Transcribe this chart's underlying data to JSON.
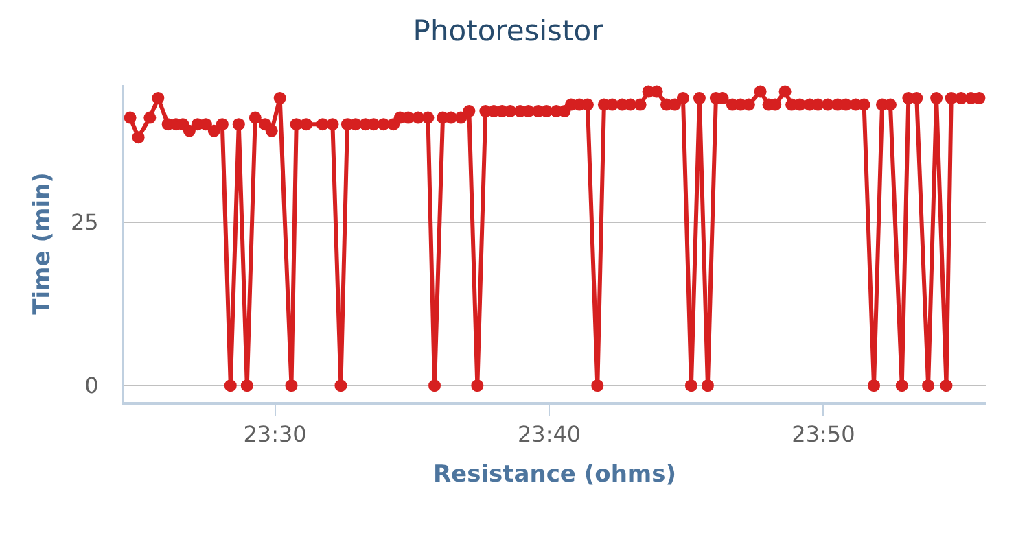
{
  "chart_data": {
    "type": "line",
    "title": "Photoresistor",
    "xlabel": "Resistance (ohms)",
    "ylabel": "Time (min)",
    "x": [
      23.412,
      23.417,
      23.424,
      23.429,
      23.435,
      23.44,
      23.444,
      23.448,
      23.453,
      23.458,
      23.463,
      23.468,
      23.473,
      23.478,
      23.483,
      23.488,
      23.494,
      23.498,
      23.503,
      23.51,
      23.513,
      23.519,
      23.529,
      23.535,
      23.54,
      23.544,
      23.549,
      23.555,
      23.56,
      23.566,
      23.572,
      23.576,
      23.581,
      23.587,
      23.593,
      23.597,
      23.602,
      23.607,
      23.613,
      23.618,
      23.623,
      23.628,
      23.633,
      23.638,
      23.643,
      23.649,
      23.654,
      23.66,
      23.665,
      23.671,
      23.676,
      23.68,
      23.685,
      23.69,
      23.696,
      23.7,
      23.705,
      23.711,
      23.716,
      23.722,
      23.727,
      23.732,
      23.738,
      23.743,
      23.748,
      23.753,
      23.758,
      23.763,
      23.768,
      23.772,
      23.778,
      23.783,
      23.788,
      23.795,
      23.8,
      23.804,
      23.81,
      23.814,
      23.819,
      23.825,
      23.83,
      23.836,
      23.842,
      23.847,
      23.853,
      23.858,
      23.864,
      23.869,
      23.874,
      23.881,
      23.885,
      23.89,
      23.897,
      23.902,
      23.908,
      23.911,
      23.917,
      23.923,
      23.928
    ],
    "series": [
      {
        "color": "#d62020",
        "values": [
          41,
          38,
          41,
          44,
          40,
          40,
          40,
          39,
          40,
          40,
          39,
          40,
          0,
          40,
          0,
          41,
          40,
          39,
          44,
          0,
          40,
          40,
          40,
          40,
          0,
          40,
          40,
          40,
          40,
          40,
          40,
          41,
          41,
          41,
          41,
          0,
          41,
          41,
          41,
          42,
          0,
          42,
          42,
          42,
          42,
          42,
          42,
          42,
          42,
          42,
          42,
          43,
          43,
          43,
          0,
          43,
          43,
          43,
          43,
          43,
          45,
          45,
          43,
          43,
          44,
          0,
          44,
          0,
          44,
          44,
          43,
          43,
          43,
          45,
          43,
          43,
          45,
          43,
          43,
          43,
          43,
          43,
          43,
          43,
          43,
          43,
          0,
          43,
          43,
          0,
          44,
          44,
          0,
          44,
          0,
          44,
          44,
          44,
          44
        ]
      }
    ],
    "xlim": [
      23.408,
      23.932
    ],
    "xticks": [
      {
        "value": 23.5,
        "label": "23:30"
      },
      {
        "value": 23.6667,
        "label": "23:40"
      },
      {
        "value": 23.8333,
        "label": "23:50"
      }
    ],
    "ylim": [
      -2.5,
      46
    ],
    "yticks": [
      0,
      25
    ],
    "grid": "y",
    "marker": "circle",
    "line_style": "solid"
  }
}
